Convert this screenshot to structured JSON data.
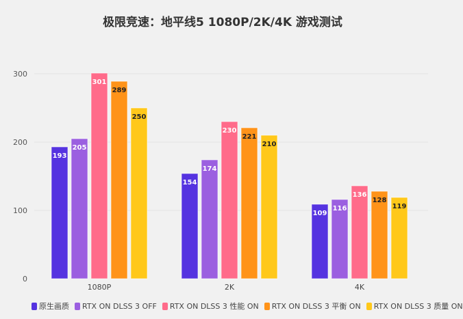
{
  "chart_data": {
    "type": "bar",
    "title": "极限竞速：地平线5 1080P/2K/4K 游戏测试",
    "categories": [
      "1080P",
      "2K",
      "4K"
    ],
    "ylim": [
      0,
      300
    ],
    "yticks": [
      0,
      100,
      200,
      300
    ],
    "legend_position": "bottom",
    "series": [
      {
        "name": "原生画质",
        "color": "#5533e0",
        "label_color": "#ffffff",
        "values": [
          193,
          154,
          109
        ]
      },
      {
        "name": "RTX ON DLSS 3 OFF",
        "color": "#9b5fe0",
        "label_color": "#ffffff",
        "values": [
          205,
          174,
          116
        ]
      },
      {
        "name": "RTX ON DLSS 3 性能 ON",
        "color": "#ff6b8a",
        "label_color": "#ffffff",
        "values": [
          301,
          230,
          136
        ]
      },
      {
        "name": "RTX ON DLSS 3 平衡 ON",
        "color": "#ff9319",
        "label_color": "#222222",
        "values": [
          289,
          221,
          128
        ]
      },
      {
        "name": "RTX ON DLSS 3 质量 ON",
        "color": "#ffc81a",
        "label_color": "#222222",
        "values": [
          250,
          210,
          119
        ]
      }
    ]
  }
}
